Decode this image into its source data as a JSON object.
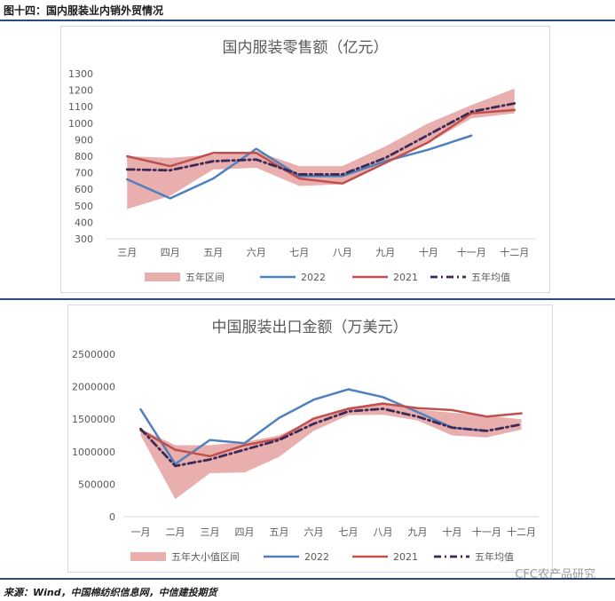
{
  "page": {
    "figure_title": "图十四：国内服装业内销外贸情况",
    "source": "来源：Wind，中国棉纺织信息网，中信建投期货",
    "watermark": "CFC农产品研究"
  },
  "colors": {
    "band": "#e39a9a",
    "s2022": "#4f81bd",
    "s2021": "#c0504d",
    "avg": "#3b2a55",
    "axis_text": "#595959",
    "rule": "#2e4a7a"
  },
  "chart_data": [
    {
      "type": "line",
      "title": "国内服装零售额（亿元）",
      "categories": [
        "三月",
        "四月",
        "五月",
        "六月",
        "七月",
        "八月",
        "九月",
        "十月",
        "十一月",
        "十二月"
      ],
      "y_ticks": [
        "1300",
        "1200",
        "1100",
        "1000",
        "900",
        "800",
        "700",
        "600",
        "500",
        "400",
        "300"
      ],
      "ylim": [
        300,
        1300
      ],
      "grid": false,
      "legend_position": "bottom",
      "band": {
        "name": "五年区间",
        "lower": [
          480,
          560,
          720,
          730,
          620,
          630,
          770,
          880,
          1030,
          1060
        ],
        "upper": [
          800,
          790,
          810,
          830,
          740,
          740,
          860,
          1000,
          1110,
          1210
        ]
      },
      "series": [
        {
          "name": "2022",
          "values": [
            660,
            545,
            665,
            845,
            680,
            680,
            770,
            840,
            925,
            null
          ]
        },
        {
          "name": "2021",
          "values": [
            800,
            740,
            820,
            820,
            665,
            635,
            760,
            885,
            1060,
            1080
          ]
        },
        {
          "name": "五年均值",
          "values": [
            720,
            715,
            770,
            780,
            690,
            690,
            790,
            930,
            1070,
            1120
          ]
        }
      ]
    },
    {
      "type": "line",
      "title": "中国服装出口金额（万美元）",
      "categories": [
        "一月",
        "二月",
        "三月",
        "四月",
        "五月",
        "六月",
        "七月",
        "八月",
        "九月",
        "十月",
        "十一月",
        "十二月"
      ],
      "y_ticks": [
        "2500000",
        "2000000",
        "1500000",
        "1000000",
        "500000",
        "0"
      ],
      "ylim": [
        0,
        2500000
      ],
      "grid": false,
      "legend_position": "bottom",
      "band": {
        "name": "五年大小值区间",
        "lower": [
          1250000,
          270000,
          670000,
          680000,
          920000,
          1320000,
          1560000,
          1570000,
          1480000,
          1250000,
          1220000,
          1340000
        ],
        "upper": [
          1350000,
          1100000,
          1100000,
          1150000,
          1250000,
          1500000,
          1680000,
          1760000,
          1650000,
          1600000,
          1550000,
          1500000
        ]
      },
      "series": [
        {
          "name": "2022",
          "values": [
            1650000,
            810000,
            1180000,
            1130000,
            1520000,
            1800000,
            1960000,
            1840000,
            1610000,
            1370000,
            1320000,
            null
          ]
        },
        {
          "name": "2021",
          "values": [
            1330000,
            1030000,
            930000,
            1100000,
            1200000,
            1510000,
            1660000,
            1740000,
            1670000,
            1640000,
            1540000,
            1590000
          ]
        },
        {
          "name": "五年均值",
          "values": [
            1350000,
            780000,
            880000,
            1030000,
            1180000,
            1430000,
            1620000,
            1660000,
            1540000,
            1370000,
            1320000,
            1420000
          ]
        }
      ]
    }
  ]
}
